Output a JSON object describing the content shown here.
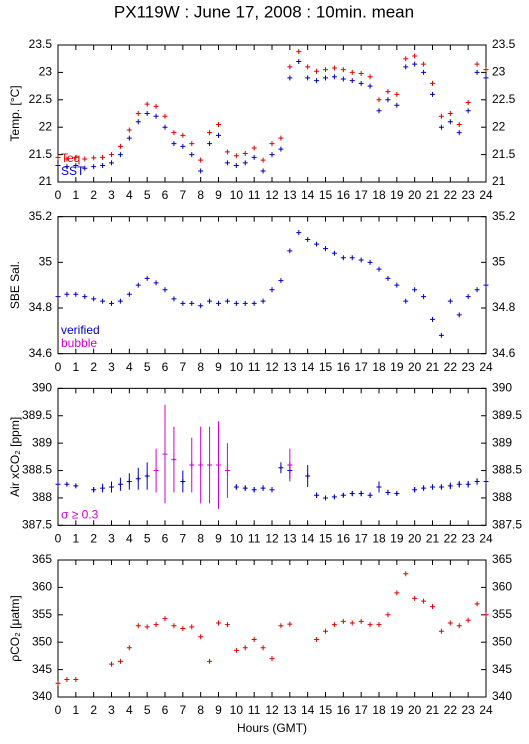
{
  "title": "PX119W : June 17, 2008 : 10min. mean",
  "chart_data": [
    {
      "type": "scatter",
      "ylabel": "Temp. [°C]",
      "xlim": [
        0,
        24
      ],
      "xticks": [
        0,
        1,
        2,
        3,
        4,
        5,
        6,
        7,
        8,
        9,
        10,
        11,
        12,
        13,
        14,
        15,
        16,
        17,
        18,
        19,
        20,
        21,
        22,
        23,
        24
      ],
      "ylim": [
        21,
        23.5
      ],
      "yticks": [
        21,
        21.5,
        22,
        22.5,
        23,
        23.5
      ],
      "x": [
        0,
        0.5,
        1,
        1.5,
        2,
        2.5,
        3,
        3.5,
        4,
        4.5,
        5,
        5.5,
        6,
        6.5,
        7,
        7.5,
        8,
        8.5,
        9,
        9.5,
        10,
        10.5,
        11,
        11.5,
        12,
        12.5,
        13,
        13.5,
        14,
        14.5,
        15,
        15.5,
        16,
        16.5,
        17,
        17.5,
        18,
        18.5,
        19,
        19.5,
        20,
        20.5,
        21,
        21.5,
        22,
        22.5,
        23,
        23.5,
        24
      ],
      "series": [
        {
          "name": "Teq",
          "color": "#e00000",
          "values": [
            21.45,
            21.42,
            21.45,
            21.42,
            21.44,
            21.45,
            21.5,
            21.65,
            21.95,
            22.25,
            22.42,
            22.38,
            22.2,
            21.9,
            21.85,
            21.7,
            21.4,
            21.9,
            22.05,
            21.55,
            21.48,
            21.52,
            21.62,
            21.4,
            21.7,
            21.8,
            23.1,
            23.38,
            23.1,
            23.02,
            23.05,
            23.08,
            23.05,
            23.0,
            22.98,
            22.92,
            22.5,
            22.65,
            22.6,
            23.25,
            23.3,
            23.15,
            22.8,
            22.2,
            22.25,
            22.05,
            22.45,
            23.15,
            23.05
          ]
        },
        {
          "name": "SST",
          "color": "#0000c0",
          "values": [
            21.3,
            21.28,
            21.3,
            21.25,
            21.28,
            21.3,
            21.35,
            21.5,
            21.8,
            22.1,
            22.25,
            22.2,
            22.0,
            21.7,
            21.65,
            21.5,
            21.2,
            21.7,
            21.85,
            21.35,
            21.3,
            21.35,
            21.45,
            21.2,
            21.5,
            21.6,
            22.9,
            23.2,
            22.9,
            22.85,
            22.9,
            22.92,
            22.88,
            22.85,
            22.8,
            22.75,
            22.3,
            22.5,
            22.4,
            23.1,
            23.15,
            23.0,
            22.6,
            22.0,
            22.1,
            21.9,
            22.3,
            23.0,
            22.9
          ]
        }
      ]
    },
    {
      "type": "scatter",
      "ylabel": "SBE Sal.",
      "xlim": [
        0,
        24
      ],
      "xticks": [
        0,
        1,
        2,
        3,
        4,
        5,
        6,
        7,
        8,
        9,
        10,
        11,
        12,
        13,
        14,
        15,
        16,
        17,
        18,
        19,
        20,
        21,
        22,
        23,
        24
      ],
      "ylim": [
        34.6,
        35.2
      ],
      "yticks": [
        34.6,
        34.8,
        35,
        35.2
      ],
      "x": [
        0,
        0.5,
        1,
        1.5,
        2,
        2.5,
        3,
        3.5,
        4,
        4.5,
        5,
        5.5,
        6,
        6.5,
        7,
        7.5,
        8,
        8.5,
        9,
        9.5,
        10,
        10.5,
        11,
        11.5,
        12,
        12.5,
        13,
        13.5,
        14,
        14.5,
        15,
        15.5,
        16,
        16.5,
        17,
        17.5,
        18,
        18.5,
        19,
        19.5,
        20,
        20.5,
        21,
        21.5,
        22,
        22.5,
        23,
        23.5,
        24
      ],
      "series": [
        {
          "name": "verified",
          "color": "#0000c0",
          "values": [
            34.85,
            34.86,
            34.86,
            34.85,
            34.84,
            34.83,
            34.82,
            34.83,
            34.86,
            34.9,
            34.93,
            34.91,
            34.88,
            34.84,
            34.82,
            34.82,
            34.81,
            34.83,
            34.82,
            34.83,
            34.82,
            34.82,
            34.82,
            34.83,
            34.88,
            34.92,
            35.05,
            35.13,
            35.1,
            35.08,
            35.06,
            35.04,
            35.02,
            35.02,
            35.01,
            35.0,
            34.97,
            34.93,
            34.9,
            34.83,
            34.88,
            34.85,
            34.75,
            34.68,
            34.83,
            34.77,
            34.85,
            34.88,
            34.9
          ]
        },
        {
          "name": "bubble",
          "color": "#d000d0",
          "values": [
            null,
            null,
            null,
            null,
            null,
            null,
            null,
            null,
            null,
            null,
            null,
            null,
            null,
            null,
            null,
            null,
            null,
            null,
            null,
            null,
            null,
            null,
            null,
            null,
            null,
            null,
            null,
            null,
            null,
            null,
            null,
            null,
            null,
            null,
            null,
            null,
            null,
            null,
            null,
            null,
            null,
            null,
            null,
            null,
            null,
            null,
            null,
            null,
            null
          ]
        }
      ]
    },
    {
      "type": "scatter",
      "ylabel": "Air xCO₂ [ppm]",
      "xlim": [
        0,
        24
      ],
      "xticks": [
        0,
        1,
        2,
        3,
        4,
        5,
        6,
        7,
        8,
        9,
        10,
        11,
        12,
        13,
        14,
        15,
        16,
        17,
        18,
        19,
        20,
        21,
        22,
        23,
        24
      ],
      "ylim": [
        387.5,
        390
      ],
      "yticks": [
        387.5,
        388,
        388.5,
        389,
        389.5,
        390
      ],
      "x": [
        0,
        0.5,
        1,
        1.5,
        2,
        2.5,
        3,
        3.5,
        4,
        4.5,
        5,
        5.5,
        6,
        6.5,
        7,
        7.5,
        8,
        8.5,
        9,
        9.5,
        10,
        10.5,
        11,
        11.5,
        12,
        12.5,
        13,
        13.5,
        14,
        14.5,
        15,
        15.5,
        16,
        16.5,
        17,
        17.5,
        18,
        18.5,
        19,
        19.5,
        20,
        20.5,
        21,
        21.5,
        22,
        22.5,
        23,
        23.5,
        24
      ],
      "series": [
        {
          "color": "#0000c0",
          "values": [
            388.25,
            388.25,
            388.22,
            null,
            388.15,
            388.18,
            388.2,
            388.25,
            388.3,
            388.35,
            388.4,
            null,
            null,
            null,
            388.3,
            null,
            null,
            null,
            null,
            null,
            388.2,
            388.18,
            388.15,
            388.18,
            388.15,
            388.55,
            388.5,
            null,
            388.4,
            388.05,
            388.0,
            388.02,
            388.05,
            388.08,
            388.08,
            388.05,
            388.2,
            388.1,
            388.08,
            null,
            388.15,
            388.18,
            388.2,
            388.2,
            388.22,
            388.25,
            388.25,
            388.3,
            388.3
          ],
          "errors": [
            0.03,
            0.03,
            0.03,
            null,
            0.05,
            0.08,
            0.1,
            0.12,
            0.15,
            0.2,
            0.25,
            null,
            null,
            null,
            0.2,
            null,
            null,
            null,
            null,
            null,
            0.05,
            0.05,
            0.05,
            0.05,
            0.05,
            0.1,
            0.15,
            null,
            0.2,
            0.05,
            0.04,
            0.04,
            0.04,
            0.05,
            0.05,
            0.05,
            0.1,
            0.05,
            0.04,
            null,
            0.05,
            0.05,
            0.05,
            0.05,
            0.06,
            0.06,
            0.06,
            0.06,
            0.06
          ]
        },
        {
          "name": "σ ≥ 0.3",
          "color": "#d000d0",
          "values": [
            null,
            null,
            null,
            null,
            null,
            null,
            null,
            null,
            null,
            null,
            null,
            388.5,
            388.8,
            388.7,
            null,
            388.6,
            388.6,
            388.6,
            388.6,
            388.5,
            null,
            null,
            null,
            null,
            null,
            null,
            388.6,
            null,
            null,
            null,
            null,
            null,
            null,
            null,
            null,
            null,
            null,
            null,
            null,
            null,
            null,
            null,
            null,
            null,
            null,
            null,
            null,
            null,
            null
          ],
          "errors": [
            null,
            null,
            null,
            null,
            null,
            null,
            null,
            null,
            null,
            null,
            null,
            0.4,
            0.9,
            0.6,
            null,
            0.5,
            0.7,
            0.7,
            0.8,
            0.5,
            null,
            null,
            null,
            null,
            null,
            null,
            0.3,
            null,
            null,
            null,
            null,
            null,
            null,
            null,
            null,
            null,
            null,
            null,
            null,
            null,
            null,
            null,
            null,
            null,
            null,
            null,
            null,
            null,
            null
          ]
        }
      ]
    },
    {
      "type": "scatter",
      "ylabel": "ρCO₂ [μatm]",
      "xlabel": "Hours (GMT)",
      "xlim": [
        0,
        24
      ],
      "xticks": [
        0,
        1,
        2,
        3,
        4,
        5,
        6,
        7,
        8,
        9,
        10,
        11,
        12,
        13,
        14,
        15,
        16,
        17,
        18,
        19,
        20,
        21,
        22,
        23,
        24
      ],
      "ylim": [
        340,
        365
      ],
      "yticks": [
        340,
        345,
        350,
        355,
        360,
        365
      ],
      "x": [
        0,
        0.5,
        1,
        1.5,
        2,
        2.5,
        3,
        3.5,
        4,
        4.5,
        5,
        5.5,
        6,
        6.5,
        7,
        7.5,
        8,
        8.5,
        9,
        9.5,
        10,
        10.5,
        11,
        11.5,
        12,
        12.5,
        13,
        13.5,
        14,
        14.5,
        15,
        15.5,
        16,
        16.5,
        17,
        17.5,
        18,
        18.5,
        19,
        19.5,
        20,
        20.5,
        21,
        21.5,
        22,
        22.5,
        23,
        23.5,
        24
      ],
      "series": [
        {
          "color": "#e00000",
          "values": [
            342.5,
            343.2,
            343.2,
            null,
            null,
            null,
            346,
            346.5,
            349,
            353,
            352.8,
            353.2,
            354.3,
            353,
            352.5,
            352.8,
            351,
            346.5,
            353.5,
            353.2,
            348.5,
            349,
            350.5,
            349,
            347,
            353,
            353.3,
            null,
            null,
            350.5,
            352,
            353.2,
            353.8,
            353.5,
            353.8,
            353.2,
            353.2,
            355,
            359,
            362.5,
            358,
            357.5,
            356.5,
            352,
            353.5,
            353,
            354,
            357,
            355
          ]
        }
      ]
    }
  ]
}
